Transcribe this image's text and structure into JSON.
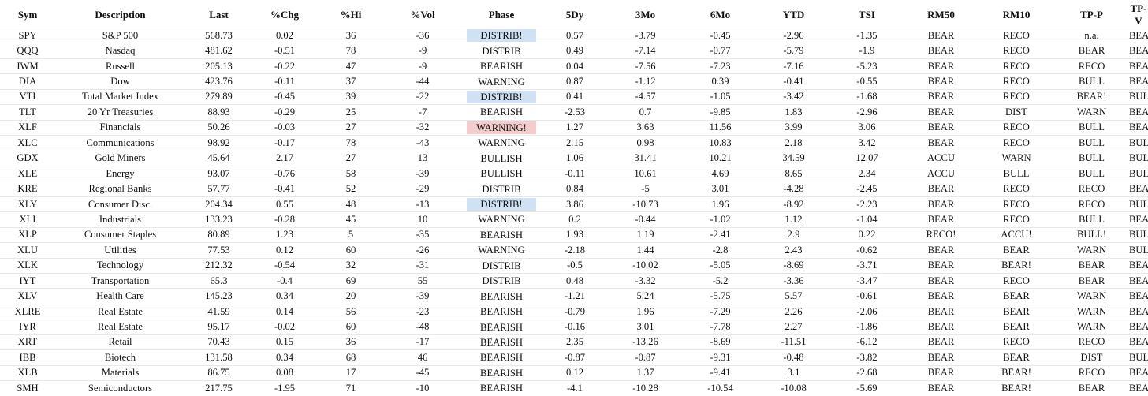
{
  "headers": [
    "Sym",
    "Description",
    "Last",
    "%Chg",
    "%Hi",
    "%Vol",
    "Phase",
    "5Dy",
    "3Mo",
    "6Mo",
    "YTD",
    "TSI",
    "RM50",
    "RM10",
    "TP-P",
    "TP-V"
  ],
  "colors": {
    "highlight_blue": "#cfe2f3",
    "highlight_red": "#f4cccc"
  },
  "rows": [
    {
      "sym": "SPY",
      "desc": "S&P 500",
      "last": "568.73",
      "chg": "0.02",
      "hi": "36",
      "vol": "-36",
      "phase": "DISTRIB!",
      "hl": "blue",
      "d5": "0.57",
      "m3": "-3.79",
      "m6": "-0.45",
      "ytd": "-2.96",
      "tsi": "-1.35",
      "rm50": "BEAR",
      "rm10": "RECO",
      "tpp": "n.a.",
      "tpv": "BEAR"
    },
    {
      "sym": "QQQ",
      "desc": "Nasdaq",
      "last": "481.62",
      "chg": "-0.51",
      "hi": "78",
      "vol": "-9",
      "phase": "DISTRIB",
      "hl": "",
      "d5": "0.49",
      "m3": "-7.14",
      "m6": "-0.77",
      "ytd": "-5.79",
      "tsi": "-1.9",
      "rm50": "BEAR",
      "rm10": "RECO",
      "tpp": "BEAR",
      "tpv": "BEAR"
    },
    {
      "sym": "IWM",
      "desc": "Russell",
      "last": "205.13",
      "chg": "-0.22",
      "hi": "47",
      "vol": "-9",
      "phase": "BEARISH",
      "hl": "",
      "d5": "0.04",
      "m3": "-7.56",
      "m6": "-7.23",
      "ytd": "-7.16",
      "tsi": "-5.23",
      "rm50": "BEAR",
      "rm10": "RECO",
      "tpp": "RECO",
      "tpv": "BEAR+"
    },
    {
      "sym": "DIA",
      "desc": "Dow",
      "last": "423.76",
      "chg": "-0.11",
      "hi": "37",
      "vol": "-44",
      "phase": "WARNING",
      "hl": "",
      "d5": "0.87",
      "m3": "-1.12",
      "m6": "0.39",
      "ytd": "-0.41",
      "tsi": "-0.55",
      "rm50": "BEAR",
      "rm10": "RECO",
      "tpp": "BULL",
      "tpv": "BEAR"
    },
    {
      "sym": "VTI",
      "desc": "Total Market Index",
      "last": "279.89",
      "chg": "-0.45",
      "hi": "39",
      "vol": "-22",
      "phase": "DISTRIB!",
      "hl": "blue",
      "d5": "0.41",
      "m3": "-4.57",
      "m6": "-1.05",
      "ytd": "-3.42",
      "tsi": "-1.68",
      "rm50": "BEAR",
      "rm10": "RECO",
      "tpp": "BEAR!",
      "tpv": "BULL"
    },
    {
      "sym": "TLT",
      "desc": "20 Yr Treasuries",
      "last": "88.93",
      "chg": "-0.29",
      "hi": "25",
      "vol": "-7",
      "phase": "BEARISH",
      "hl": "",
      "d5": "-2.53",
      "m3": "0.7",
      "m6": "-9.85",
      "ytd": "1.83",
      "tsi": "-2.96",
      "rm50": "BEAR",
      "rm10": "DIST",
      "tpp": "WARN",
      "tpv": "BEAR+"
    },
    {
      "sym": "XLF",
      "desc": "Financials",
      "last": "50.26",
      "chg": "-0.03",
      "hi": "27",
      "vol": "-32",
      "phase": "WARNING!",
      "hl": "red",
      "d5": "1.27",
      "m3": "3.63",
      "m6": "11.56",
      "ytd": "3.99",
      "tsi": "3.06",
      "rm50": "BEAR",
      "rm10": "RECO",
      "tpp": "BULL",
      "tpv": "BEAR"
    },
    {
      "sym": "XLC",
      "desc": "Communications",
      "last": "98.92",
      "chg": "-0.17",
      "hi": "78",
      "vol": "-43",
      "phase": "WARNING",
      "hl": "",
      "d5": "2.15",
      "m3": "0.98",
      "m6": "10.83",
      "ytd": "2.18",
      "tsi": "3.42",
      "rm50": "BEAR",
      "rm10": "RECO",
      "tpp": "BULL",
      "tpv": "BULL"
    },
    {
      "sym": "GDX",
      "desc": "Gold Miners",
      "last": "45.64",
      "chg": "2.17",
      "hi": "27",
      "vol": "13",
      "phase": "BULLISH",
      "hl": "",
      "d5": "1.06",
      "m3": "31.41",
      "m6": "10.21",
      "ytd": "34.59",
      "tsi": "12.07",
      "rm50": "ACCU",
      "rm10": "WARN",
      "tpp": "BULL",
      "tpv": "BULL"
    },
    {
      "sym": "XLE",
      "desc": "Energy",
      "last": "93.07",
      "chg": "-0.76",
      "hi": "58",
      "vol": "-39",
      "phase": "BULLISH",
      "hl": "",
      "d5": "-0.11",
      "m3": "10.61",
      "m6": "4.69",
      "ytd": "8.65",
      "tsi": "2.34",
      "rm50": "ACCU",
      "rm10": "BULL",
      "tpp": "BULL",
      "tpv": "BULL+"
    },
    {
      "sym": "KRE",
      "desc": "Regional Banks",
      "last": "57.77",
      "chg": "-0.41",
      "hi": "52",
      "vol": "-29",
      "phase": "DISTRIB",
      "hl": "",
      "d5": "0.84",
      "m3": "-5",
      "m6": "3.01",
      "ytd": "-4.28",
      "tsi": "-2.45",
      "rm50": "BEAR",
      "rm10": "RECO",
      "tpp": "RECO",
      "tpv": "BEAR+"
    },
    {
      "sym": "XLY",
      "desc": "Consumer Disc.",
      "last": "204.34",
      "chg": "0.55",
      "hi": "48",
      "vol": "-13",
      "phase": "DISTRIB!",
      "hl": "blue",
      "d5": "3.86",
      "m3": "-10.73",
      "m6": "1.96",
      "ytd": "-8.92",
      "tsi": "-2.23",
      "rm50": "BEAR",
      "rm10": "RECO",
      "tpp": "RECO",
      "tpv": "BULL"
    },
    {
      "sym": "XLI",
      "desc": "Industrials",
      "last": "133.23",
      "chg": "-0.28",
      "hi": "45",
      "vol": "10",
      "phase": "WARNING",
      "hl": "",
      "d5": "0.2",
      "m3": "-0.44",
      "m6": "-1.02",
      "ytd": "1.12",
      "tsi": "-1.04",
      "rm50": "BEAR",
      "rm10": "RECO",
      "tpp": "BULL",
      "tpv": "BEAR+"
    },
    {
      "sym": "XLP",
      "desc": "Consumer Staples",
      "last": "80.89",
      "chg": "1.23",
      "hi": "5",
      "vol": "-35",
      "phase": "BEARISH",
      "hl": "",
      "d5": "1.93",
      "m3": "1.19",
      "m6": "-2.41",
      "ytd": "2.9",
      "tsi": "0.22",
      "rm50": "RECO!",
      "rm10": "ACCU!",
      "tpp": "BULL!",
      "tpv": "BULL"
    },
    {
      "sym": "XLU",
      "desc": "Utilities",
      "last": "77.53",
      "chg": "0.12",
      "hi": "60",
      "vol": "-26",
      "phase": "WARNING",
      "hl": "",
      "d5": "-2.18",
      "m3": "1.44",
      "m6": "-2.8",
      "ytd": "2.43",
      "tsi": "-0.62",
      "rm50": "BEAR",
      "rm10": "BEAR",
      "tpp": "WARN",
      "tpv": "BULL"
    },
    {
      "sym": "XLK",
      "desc": "Technology",
      "last": "212.32",
      "chg": "-0.54",
      "hi": "32",
      "vol": "-31",
      "phase": "DISTRIB",
      "hl": "",
      "d5": "-0.5",
      "m3": "-10.02",
      "m6": "-5.05",
      "ytd": "-8.69",
      "tsi": "-3.71",
      "rm50": "BEAR",
      "rm10": "BEAR!",
      "tpp": "BEAR",
      "tpv": "BEAR"
    },
    {
      "sym": "IYT",
      "desc": "Transportation",
      "last": "65.3",
      "chg": "-0.4",
      "hi": "69",
      "vol": "55",
      "phase": "DISTRIB",
      "hl": "",
      "d5": "0.48",
      "m3": "-3.32",
      "m6": "-5.2",
      "ytd": "-3.36",
      "tsi": "-3.47",
      "rm50": "BEAR",
      "rm10": "RECO",
      "tpp": "BEAR",
      "tpv": "BEAR"
    },
    {
      "sym": "XLV",
      "desc": "Health Care",
      "last": "145.23",
      "chg": "0.34",
      "hi": "20",
      "vol": "-39",
      "phase": "BEARISH",
      "hl": "",
      "d5": "-1.21",
      "m3": "5.24",
      "m6": "-5.75",
      "ytd": "5.57",
      "tsi": "-0.61",
      "rm50": "BEAR",
      "rm10": "BEAR",
      "tpp": "WARN",
      "tpv": "BEAR"
    },
    {
      "sym": "XLRE",
      "desc": "Real Estate",
      "last": "41.59",
      "chg": "0.14",
      "hi": "56",
      "vol": "-23",
      "phase": "BEARISH",
      "hl": "",
      "d5": "-0.79",
      "m3": "1.96",
      "m6": "-7.29",
      "ytd": "2.26",
      "tsi": "-2.06",
      "rm50": "BEAR",
      "rm10": "BEAR",
      "tpp": "WARN",
      "tpv": "BEAR"
    },
    {
      "sym": "IYR",
      "desc": "Real Estate",
      "last": "95.17",
      "chg": "-0.02",
      "hi": "60",
      "vol": "-48",
      "phase": "BEARISH",
      "hl": "",
      "d5": "-0.16",
      "m3": "3.01",
      "m6": "-7.78",
      "ytd": "2.27",
      "tsi": "-1.86",
      "rm50": "BEAR",
      "rm10": "BEAR",
      "tpp": "WARN",
      "tpv": "BEAR"
    },
    {
      "sym": "XRT",
      "desc": "Retail",
      "last": "70.43",
      "chg": "0.15",
      "hi": "36",
      "vol": "-17",
      "phase": "BEARISH",
      "hl": "",
      "d5": "2.35",
      "m3": "-13.26",
      "m6": "-8.69",
      "ytd": "-11.51",
      "tsi": "-6.12",
      "rm50": "BEAR",
      "rm10": "RECO",
      "tpp": "RECO",
      "tpv": "BEAR"
    },
    {
      "sym": "IBB",
      "desc": "Biotech",
      "last": "131.58",
      "chg": "0.34",
      "hi": "68",
      "vol": "46",
      "phase": "BEARISH",
      "hl": "",
      "d5": "-0.87",
      "m3": "-0.87",
      "m6": "-9.31",
      "ytd": "-0.48",
      "tsi": "-3.82",
      "rm50": "BEAR",
      "rm10": "BEAR",
      "tpp": "DIST",
      "tpv": "BULL"
    },
    {
      "sym": "XLB",
      "desc": "Materials",
      "last": "86.75",
      "chg": "0.08",
      "hi": "17",
      "vol": "-45",
      "phase": "BEARISH",
      "hl": "",
      "d5": "0.12",
      "m3": "1.37",
      "m6": "-9.41",
      "ytd": "3.1",
      "tsi": "-2.68",
      "rm50": "BEAR",
      "rm10": "BEAR!",
      "tpp": "RECO",
      "tpv": "BEAR"
    },
    {
      "sym": "SMH",
      "desc": "Semiconductors",
      "last": "217.75",
      "chg": "-1.95",
      "hi": "71",
      "vol": "-10",
      "phase": "BEARISH",
      "hl": "",
      "d5": "-4.1",
      "m3": "-10.28",
      "m6": "-10.54",
      "ytd": "-10.08",
      "tsi": "-5.69",
      "rm50": "BEAR",
      "rm10": "BEAR!",
      "tpp": "BEAR",
      "tpv": "BEAR+"
    }
  ]
}
